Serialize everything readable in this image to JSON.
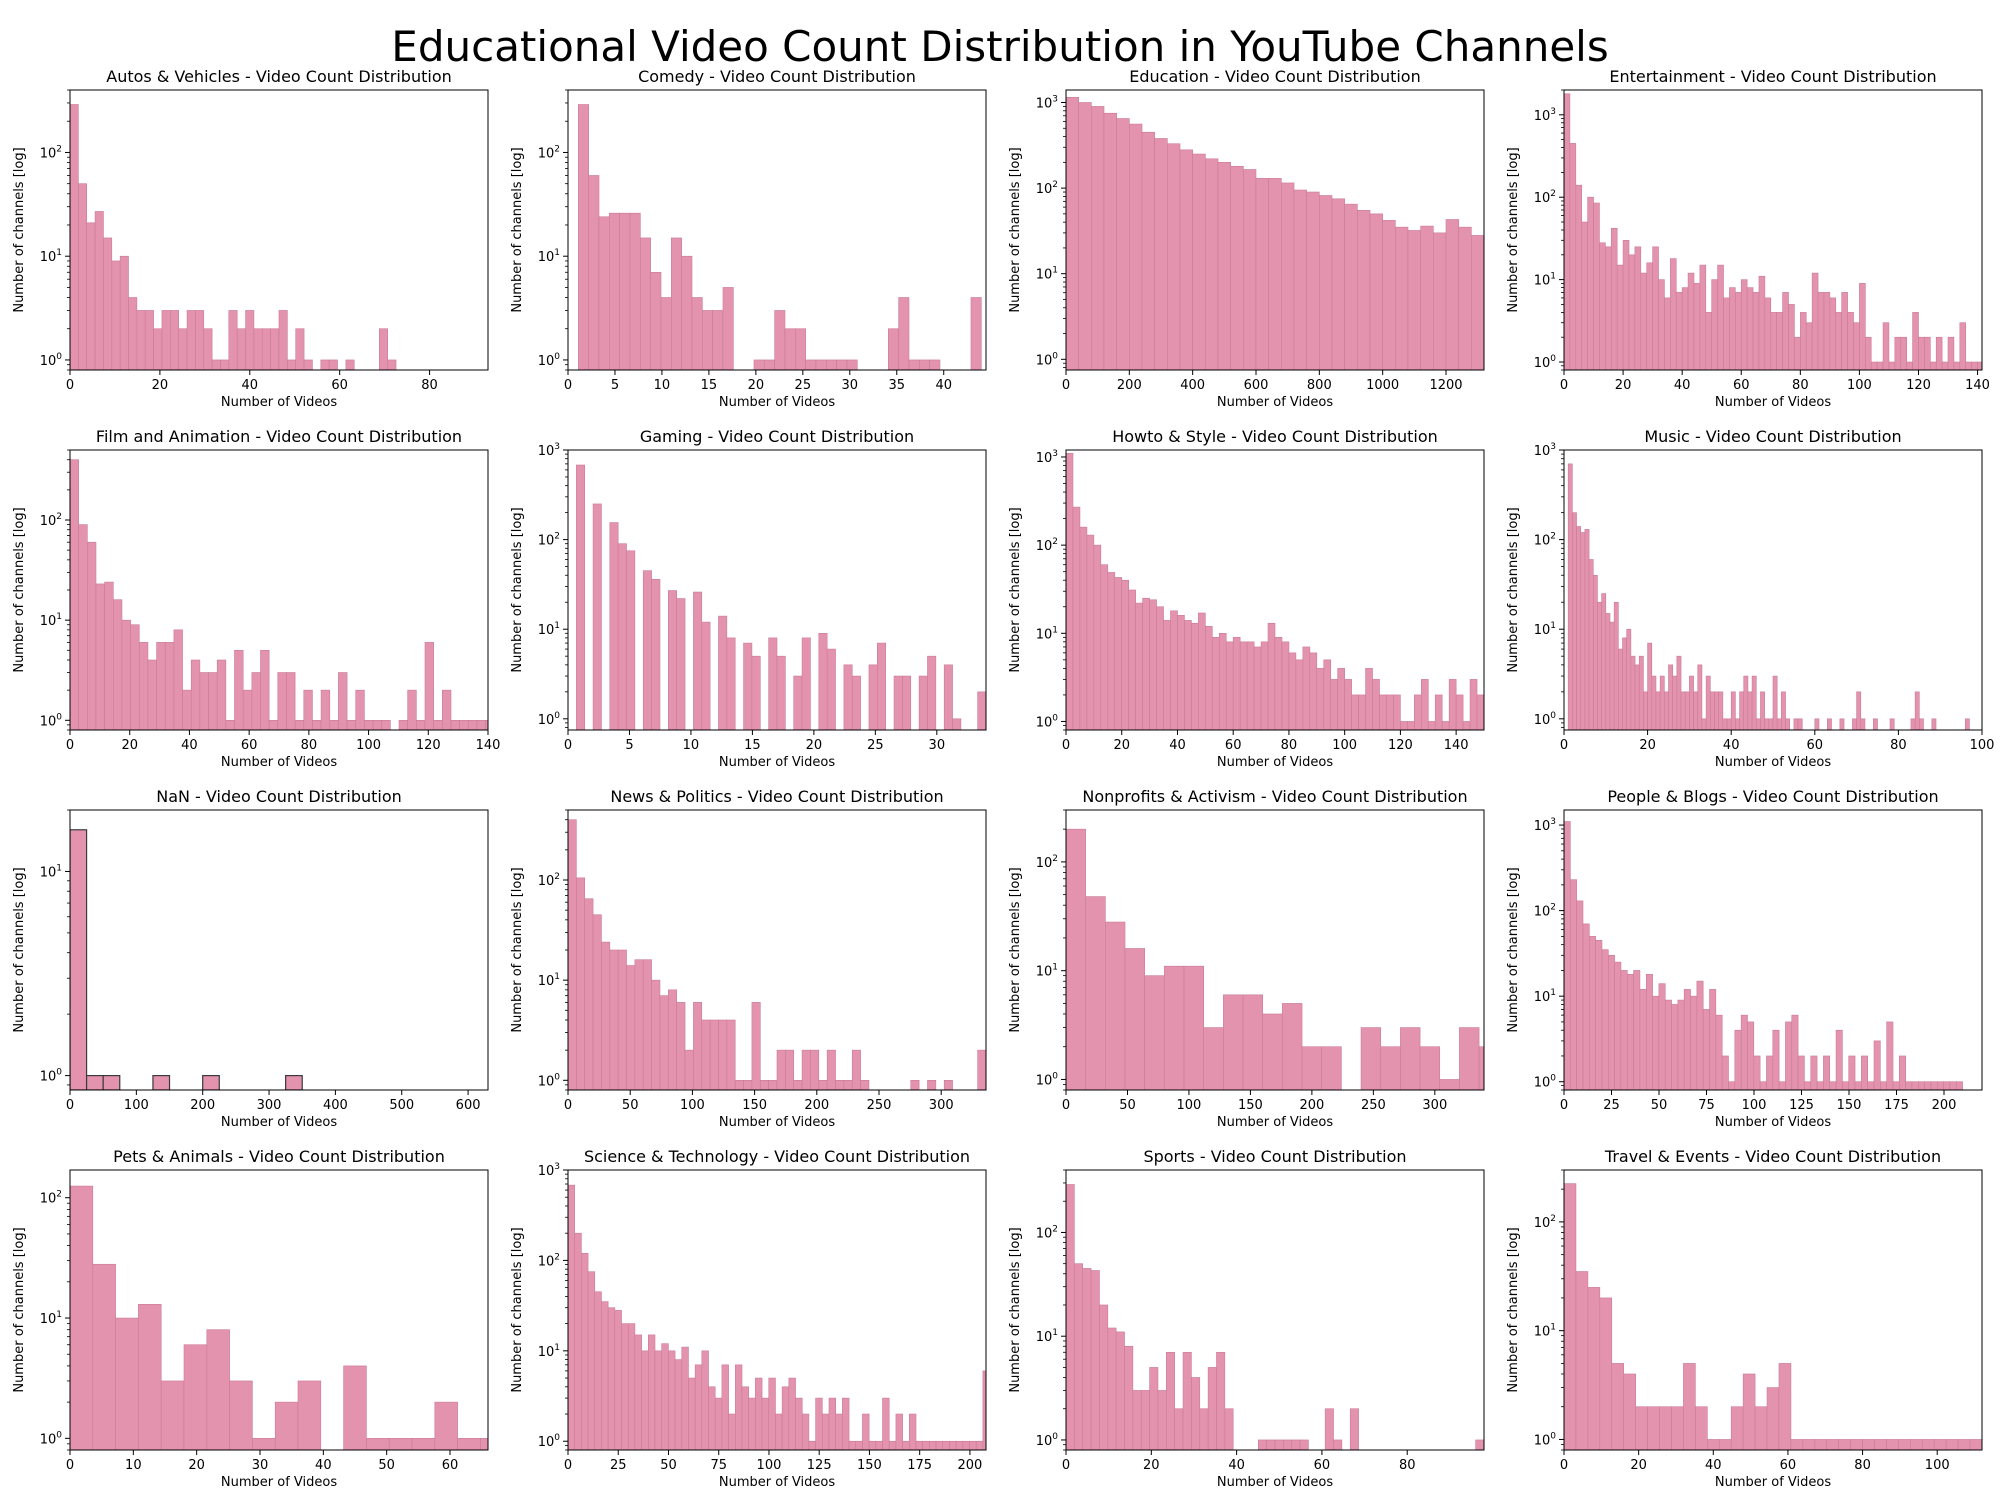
{
  "figure": {
    "suptitle": "Educational Video Count Distribution in YouTube Channels"
  },
  "colors": {
    "bar_fill": "#e493ae",
    "bar_stroke": "#c97b96",
    "axis": "#000000",
    "nan_bar_stroke": "#3a3a3a"
  },
  "chart_data": [
    {
      "type": "bar",
      "title": "Autos & Vehicles - Video Count Distribution",
      "xlabel": "Number of Videos",
      "ylabel": "Number of channels [log]",
      "yscale": "log",
      "ylim": [
        0.8,
        400
      ],
      "xlim": [
        0,
        93
      ],
      "xticks": [
        0,
        20,
        40,
        60,
        80
      ],
      "yticks": [
        1,
        10,
        100
      ],
      "bin_width": 1.86,
      "values": [
        290,
        50,
        21,
        27,
        15,
        9,
        10,
        4,
        3,
        3,
        2,
        3,
        3,
        2,
        3,
        3,
        2,
        1,
        1,
        3,
        2,
        3,
        2,
        2,
        2,
        3,
        1,
        2,
        1,
        0,
        1,
        1,
        0,
        1,
        0,
        0,
        0,
        2,
        1,
        0,
        0,
        0,
        0,
        0,
        0,
        0,
        0,
        0,
        0,
        0
      ]
    },
    {
      "type": "bar",
      "title": "Comedy - Video Count Distribution",
      "xlabel": "Number of Videos",
      "ylabel": "Number of channels [log]",
      "yscale": "log",
      "ylim": [
        0.8,
        400
      ],
      "xlim": [
        0,
        44.5
      ],
      "xticks": [
        0,
        5,
        10,
        15,
        20,
        25,
        30,
        35,
        40
      ],
      "yticks": [
        1,
        10,
        100
      ],
      "bin_width": 1.1,
      "values": [
        0,
        290,
        60,
        24,
        26,
        26,
        26,
        15,
        7,
        4,
        15,
        10,
        4,
        3,
        3,
        5,
        0,
        0,
        1,
        1,
        3,
        2,
        2,
        1,
        1,
        1,
        1,
        1,
        0,
        0,
        0,
        2,
        4,
        1,
        1,
        1,
        0,
        0,
        0,
        4
      ]
    },
    {
      "type": "bar",
      "title": "Education - Video Count Distribution",
      "xlabel": "Number of Videos",
      "ylabel": "Number of channels [log]",
      "yscale": "log",
      "ylim": [
        0.75,
        1400
      ],
      "xlim": [
        0,
        1320
      ],
      "xticks": [
        0,
        200,
        400,
        600,
        800,
        1000,
        1200
      ],
      "yticks": [
        1,
        10,
        100,
        1000
      ],
      "bin_width": 40,
      "values": [
        1150,
        1000,
        900,
        750,
        650,
        560,
        450,
        380,
        330,
        280,
        250,
        220,
        200,
        180,
        165,
        130,
        130,
        115,
        95,
        90,
        82,
        75,
        65,
        55,
        50,
        42,
        35,
        32,
        36,
        30,
        43,
        35,
        28,
        24,
        22,
        20,
        17,
        15,
        24,
        17
      ]
    },
    {
      "type": "bar",
      "title": "Entertainment - Video Count Distribution",
      "xlabel": "Number of Videos",
      "ylabel": "Number of channels [log]",
      "yscale": "log",
      "ylim": [
        0.8,
        2000
      ],
      "xlim": [
        0,
        141.5
      ],
      "xticks": [
        0,
        20,
        40,
        60,
        80,
        100,
        120,
        140
      ],
      "yticks": [
        1,
        10,
        100,
        1000
      ],
      "bin_width": 2.0,
      "values": [
        1800,
        450,
        140,
        50,
        100,
        85,
        28,
        25,
        42,
        15,
        30,
        20,
        25,
        12,
        16,
        25,
        10,
        6,
        18,
        7,
        8,
        12,
        9,
        15,
        4,
        10,
        15,
        6,
        8,
        7,
        10,
        8,
        7,
        11,
        6,
        4,
        4,
        7,
        5,
        2,
        4,
        3,
        12,
        7,
        7,
        6,
        4,
        7,
        4,
        3,
        9,
        2,
        1,
        1,
        3,
        1,
        2,
        2,
        1,
        4,
        2,
        2,
        1,
        2,
        1,
        2,
        1,
        3,
        1,
        1,
        1
      ]
    },
    {
      "type": "bar",
      "title": "Film and Animation - Video Count Distribution",
      "xlabel": "Number of Videos",
      "ylabel": "Number of channels [log]",
      "yscale": "log",
      "ylim": [
        0.8,
        500
      ],
      "xlim": [
        0,
        140
      ],
      "xticks": [
        0,
        20,
        40,
        60,
        80,
        100,
        120,
        140
      ],
      "yticks": [
        1,
        10,
        100
      ],
      "bin_width": 2.9,
      "values": [
        400,
        90,
        60,
        23,
        24,
        16,
        10,
        9,
        6,
        4,
        6,
        6,
        8,
        2,
        4,
        3,
        3,
        4,
        1,
        5,
        2,
        3,
        5,
        1,
        3,
        3,
        1,
        2,
        1,
        2,
        1,
        3,
        1,
        2,
        1,
        1,
        1,
        0,
        1,
        2,
        1,
        6,
        1,
        2,
        1,
        1,
        1,
        1,
        1,
        2
      ]
    },
    {
      "type": "bar",
      "title": "Gaming - Video Count Distribution",
      "xlabel": "Number of Videos",
      "ylabel": "Number of channels [log]",
      "yscale": "log",
      "ylim": [
        0.75,
        1000
      ],
      "xlim": [
        0,
        34
      ],
      "xticks": [
        0,
        5,
        10,
        15,
        20,
        25,
        30
      ],
      "yticks": [
        1,
        10,
        100,
        1000
      ],
      "bin_width": 0.68,
      "values": [
        0,
        680,
        0,
        250,
        0,
        155,
        90,
        75,
        0,
        45,
        36,
        0,
        27,
        22,
        0,
        26,
        12,
        0,
        14,
        8,
        0,
        7,
        5,
        0,
        8,
        5,
        0,
        3,
        8,
        0,
        9,
        6,
        0,
        4,
        3,
        0,
        4,
        7,
        0,
        3,
        3,
        0,
        3,
        5,
        0,
        4,
        1,
        0,
        0,
        2
      ]
    },
    {
      "type": "bar",
      "title": "Howto & Style - Video Count Distribution",
      "xlabel": "Number of Videos",
      "ylabel": "Number of channels [log]",
      "yscale": "log",
      "ylim": [
        0.8,
        1200
      ],
      "xlim": [
        0,
        150
      ],
      "xticks": [
        0,
        20,
        40,
        60,
        80,
        100,
        120,
        140
      ],
      "yticks": [
        1,
        10,
        100,
        1000
      ],
      "bin_width": 2.5,
      "values": [
        1100,
        270,
        160,
        130,
        100,
        60,
        49,
        43,
        40,
        31,
        22,
        25,
        24,
        20,
        14,
        18,
        16,
        14,
        13,
        17,
        12,
        9,
        10,
        8,
        9,
        8,
        8,
        7,
        8,
        13,
        9,
        8,
        6,
        5,
        7,
        6,
        4,
        5,
        3,
        4,
        3,
        2,
        2,
        4,
        3,
        2,
        2,
        2,
        1,
        1,
        2,
        3,
        1,
        2,
        1,
        3,
        2,
        1,
        3,
        2
      ]
    },
    {
      "type": "bar",
      "title": "Music - Video Count Distribution",
      "xlabel": "Number of Videos",
      "ylabel": "Number of channels [log]",
      "yscale": "log",
      "ylim": [
        0.75,
        1000
      ],
      "xlim": [
        0,
        100
      ],
      "xticks": [
        0,
        20,
        40,
        60,
        80,
        100
      ],
      "yticks": [
        1,
        10,
        100,
        1000
      ],
      "bin_width": 1.0,
      "values": [
        0,
        700,
        200,
        140,
        120,
        130,
        60,
        40,
        20,
        25,
        15,
        12,
        20,
        6,
        8,
        10,
        5,
        4,
        5,
        2,
        7,
        3,
        2,
        3,
        2,
        4,
        3,
        5,
        2,
        2,
        3,
        2,
        4,
        1,
        3,
        2,
        2,
        2,
        1,
        1,
        2,
        1,
        2,
        3,
        2,
        3,
        1,
        2,
        1,
        1,
        3,
        1,
        2,
        1,
        0,
        1,
        1,
        0,
        0,
        0,
        1,
        0,
        0,
        1,
        0,
        0,
        1,
        0,
        0,
        1,
        2,
        1,
        0,
        0,
        1,
        0,
        0,
        0,
        1,
        0,
        0,
        0,
        0,
        1,
        2,
        1,
        0,
        0,
        1,
        0,
        0,
        0,
        0,
        0,
        0,
        0,
        1,
        0,
        0,
        0
      ]
    },
    {
      "type": "bar",
      "title": "NaN - Video Count Distribution",
      "xlabel": "Number of Videos",
      "ylabel": "Number of channels [log]",
      "yscale": "log",
      "ylim": [
        0.85,
        20
      ],
      "xlim": [
        0,
        630
      ],
      "xticks": [
        0,
        100,
        200,
        300,
        400,
        500,
        600
      ],
      "yticks": [
        1,
        10
      ],
      "bin_width": 25,
      "values": [
        16,
        1,
        1,
        0,
        0,
        1,
        0,
        0,
        1,
        0,
        0,
        0,
        0,
        1,
        0,
        0,
        0,
        0,
        0,
        0,
        0,
        0,
        0,
        0,
        0
      ]
    },
    {
      "type": "bar",
      "title": "News & Politics - Video Count Distribution",
      "xlabel": "Number of Videos",
      "ylabel": "Number of channels [log]",
      "yscale": "log",
      "ylim": [
        0.8,
        500
      ],
      "xlim": [
        0,
        336
      ],
      "xticks": [
        0,
        50,
        100,
        150,
        200,
        250,
        300
      ],
      "yticks": [
        1,
        10,
        100
      ],
      "bin_width": 6.72,
      "values": [
        400,
        105,
        65,
        45,
        24,
        20,
        20,
        14,
        16,
        16,
        10,
        7,
        8,
        6,
        2,
        6,
        4,
        4,
        4,
        4,
        1,
        1,
        6,
        1,
        1,
        2,
        2,
        1,
        2,
        2,
        1,
        2,
        1,
        1,
        2,
        1,
        0,
        0,
        0,
        0,
        0,
        1,
        0,
        1,
        0,
        1,
        0,
        0,
        0,
        2
      ]
    },
    {
      "type": "bar",
      "title": "Nonprofits & Activism - Video Count Distribution",
      "xlabel": "Number of Videos",
      "ylabel": "Number of channels [log]",
      "yscale": "log",
      "ylim": [
        0.8,
        300
      ],
      "xlim": [
        0,
        340
      ],
      "xticks": [
        0,
        50,
        100,
        150,
        200,
        250,
        300
      ],
      "yticks": [
        1,
        10,
        100
      ],
      "bin_width": 16,
      "values": [
        200,
        48,
        28,
        16,
        9,
        11,
        11,
        3,
        6,
        6,
        4,
        5,
        2,
        2,
        0,
        3,
        2,
        3,
        2,
        1,
        3,
        2,
        1
      ]
    },
    {
      "type": "bar",
      "title": "People & Blogs - Video Count Distribution",
      "xlabel": "Number of Videos",
      "ylabel": "Number of channels [log]",
      "yscale": "log",
      "ylim": [
        0.8,
        1500
      ],
      "xlim": [
        0,
        220
      ],
      "xticks": [
        0,
        25,
        50,
        75,
        100,
        125,
        150,
        175,
        200
      ],
      "yticks": [
        1,
        10,
        100,
        1000
      ],
      "bin_width": 3.33,
      "values": [
        1100,
        230,
        130,
        70,
        50,
        45,
        35,
        30,
        25,
        20,
        18,
        20,
        12,
        18,
        10,
        14,
        9,
        8,
        9,
        12,
        10,
        15,
        7,
        12,
        6,
        2,
        1,
        4,
        6,
        5,
        2,
        1,
        2,
        4,
        1,
        5,
        6,
        2,
        1,
        2,
        1,
        2,
        1,
        4,
        1,
        2,
        1,
        2,
        1,
        3,
        1,
        5,
        1,
        2,
        1,
        1,
        1,
        1,
        1,
        1,
        1,
        1,
        1
      ]
    },
    {
      "type": "bar",
      "title": "Pets & Animals - Video Count Distribution",
      "xlabel": "Number of Videos",
      "ylabel": "Number of channels [log]",
      "yscale": "log",
      "ylim": [
        0.8,
        170
      ],
      "xlim": [
        0,
        66
      ],
      "xticks": [
        0,
        10,
        20,
        30,
        40,
        50,
        60
      ],
      "yticks": [
        1,
        10,
        100
      ],
      "bin_width": 3.6,
      "values": [
        125,
        28,
        10,
        13,
        3,
        6,
        8,
        3,
        1,
        2,
        3,
        0,
        4,
        1,
        1,
        1,
        2,
        1,
        1
      ]
    },
    {
      "type": "bar",
      "title": "Science & Technology - Video Count Distribution",
      "xlabel": "Number of Videos",
      "ylabel": "Number of channels [log]",
      "yscale": "log",
      "ylim": [
        0.8,
        1000
      ],
      "xlim": [
        0,
        208
      ],
      "xticks": [
        0,
        25,
        50,
        75,
        100,
        125,
        150,
        175,
        200
      ],
      "yticks": [
        1,
        10,
        100,
        1000
      ],
      "bin_width": 3.33,
      "values": [
        680,
        200,
        120,
        75,
        45,
        35,
        30,
        28,
        20,
        20,
        15,
        10,
        15,
        10,
        12,
        10,
        8,
        11,
        5,
        7,
        10,
        4,
        3,
        7,
        2,
        7,
        4,
        3,
        5,
        3,
        5,
        2,
        4,
        5,
        3,
        2,
        1,
        3,
        2,
        3,
        2,
        3,
        1,
        1,
        2,
        1,
        1,
        3,
        1,
        2,
        1,
        2,
        1,
        1,
        1,
        1,
        1,
        1,
        1,
        1,
        1,
        1,
        6
      ]
    },
    {
      "type": "bar",
      "title": "Sports - Video Count Distribution",
      "xlabel": "Number of Videos",
      "ylabel": "Number of channels [log]",
      "yscale": "log",
      "ylim": [
        0.8,
        400
      ],
      "xlim": [
        0,
        98
      ],
      "xticks": [
        0,
        20,
        40,
        60,
        80
      ],
      "yticks": [
        1,
        10,
        100
      ],
      "bin_width": 1.96,
      "values": [
        290,
        50,
        45,
        43,
        20,
        12,
        11,
        8,
        3,
        3,
        5,
        3,
        7,
        2,
        7,
        4,
        2,
        5,
        7,
        2,
        0,
        0,
        0,
        1,
        1,
        1,
        1,
        1,
        1,
        0,
        0,
        2,
        1,
        0,
        2,
        0,
        0,
        0,
        0,
        0,
        0,
        0,
        0,
        0,
        0,
        0,
        0,
        0,
        0,
        1
      ]
    },
    {
      "type": "bar",
      "title": "Travel & Events - Video Count Distribution",
      "xlabel": "Number of Videos",
      "ylabel": "Number of channels [log]",
      "yscale": "log",
      "ylim": [
        0.8,
        300
      ],
      "xlim": [
        0,
        112
      ],
      "xticks": [
        0,
        20,
        40,
        60,
        80,
        100
      ],
      "yticks": [
        1,
        10,
        100
      ],
      "bin_width": 3.2,
      "values": [
        225,
        35,
        25,
        20,
        5,
        4,
        2,
        2,
        2,
        2,
        5,
        2,
        1,
        1,
        2,
        4,
        2,
        3,
        5,
        1,
        1,
        1,
        1,
        1,
        1,
        1,
        1,
        1,
        1,
        1,
        1,
        1,
        1,
        1,
        1,
        1
      ]
    }
  ]
}
